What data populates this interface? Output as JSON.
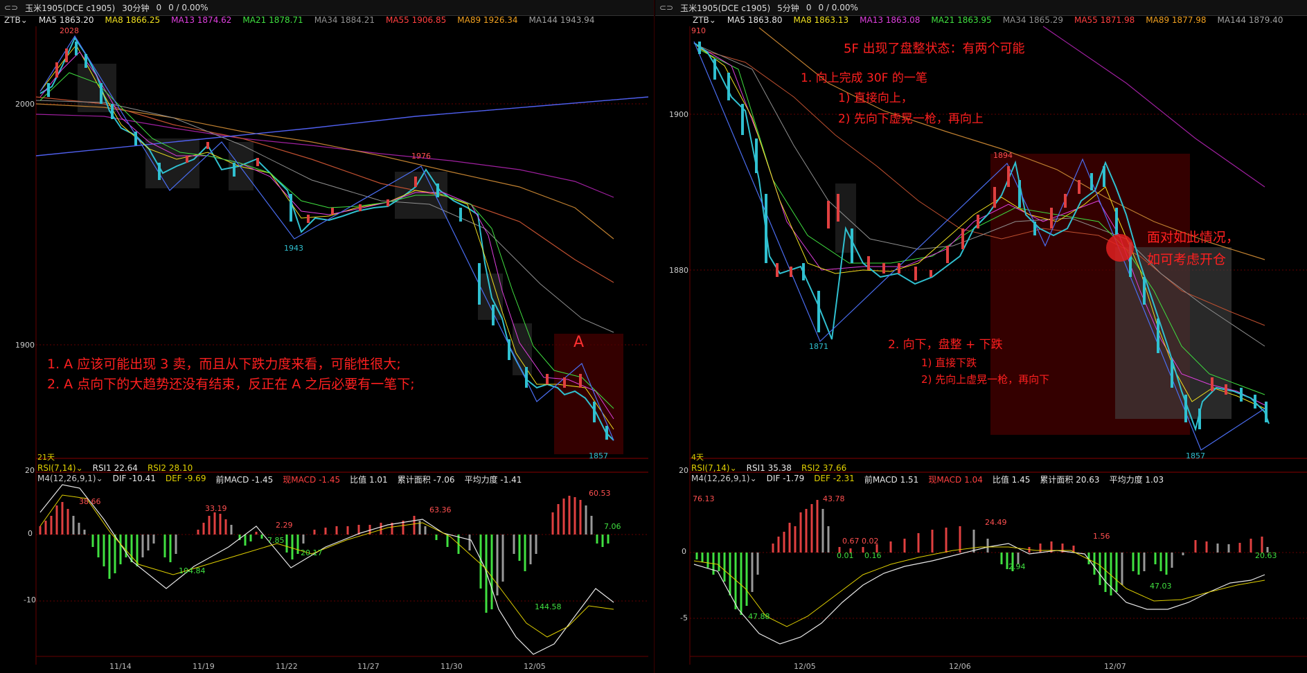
{
  "left": {
    "title": "玉米1905(DCE c1905)",
    "period": "30分钟",
    "period_arrow": "⌄",
    "change": "0",
    "change_pct": "0 / 0.00%",
    "indicator_name": "ZTB",
    "ma": [
      {
        "label": "MA5 1863.20",
        "color": "#e8e8e8"
      },
      {
        "label": "MA8 1866.25",
        "color": "#f0e020"
      },
      {
        "label": "MA13 1874.62",
        "color": "#e040e0"
      },
      {
        "label": "MA21 1878.71",
        "color": "#40e040"
      },
      {
        "label": "MA34 1884.21",
        "color": "#909090"
      },
      {
        "label": "MA55 1906.85",
        "color": "#ff4040"
      },
      {
        "label": "MA89 1926.34",
        "color": "#f0a020"
      },
      {
        "label": "MA144 1943.94",
        "color": "#a0a0a0"
      }
    ],
    "price_labels": {
      "high": "2028",
      "p1976": "1976",
      "p1943": "1943",
      "low": "1857",
      "y2000": "2000",
      "y1900": "1900"
    },
    "marker_A": "A",
    "annotations": [
      "1. A 应该可能出现 3 卖，而且从下跌力度来看，可能性很大;",
      "2. A 点向下的大趋势还没有结束，反正在 A 之后必要有一笔下;"
    ],
    "days": "21天",
    "rsi_line": {
      "rsi_label": "RSI(7,14)",
      "rsi1": "RSI1 22.64",
      "rsi2": "RSI2 28.10"
    },
    "macd_line": {
      "name": "M4(12,26,9,1)",
      "dif": "DIF -10.41",
      "dea": "DEF -9.69",
      "prev": "前MACD -1.45",
      "cur": "现MACD -1.45",
      "ratio": "比值 1.01",
      "area": "累计面积 -7.06",
      "avg": "平均力度 -1.41"
    },
    "macd_axis": {
      "top": "20",
      "zero": "0",
      "neg": "-10"
    },
    "macd_labels": [
      "38.66",
      "33.19",
      "104.84",
      "2.29",
      "7.85",
      "20.17",
      "63.36",
      "144.58",
      "60.53",
      "7.06"
    ],
    "dates": [
      "11/14",
      "11/19",
      "11/22",
      "11/27",
      "11/30",
      "12/05"
    ]
  },
  "right": {
    "title": "玉米1905(DCE c1905)",
    "period": "5分钟",
    "period_arrow": "⌄",
    "change": "0",
    "change_pct": "0 / 0.00%",
    "indicator_name": "ZTB",
    "ma": [
      {
        "label": "MA5 1863.80",
        "color": "#e8e8e8"
      },
      {
        "label": "MA8 1863.13",
        "color": "#f0e020"
      },
      {
        "label": "MA13 1863.08",
        "color": "#e040e0"
      },
      {
        "label": "MA21 1863.95",
        "color": "#40e040"
      },
      {
        "label": "MA34 1865.29",
        "color": "#909090"
      },
      {
        "label": "MA55 1871.98",
        "color": "#ff4040"
      },
      {
        "label": "MA89 1877.98",
        "color": "#f0a020"
      },
      {
        "label": "MA144 1879.40",
        "color": "#a0a0a0"
      }
    ],
    "price_labels": {
      "high": "910",
      "p1894": "1894",
      "p1871": "1871",
      "low": "1857",
      "y1900": "1900",
      "y1880": "1880"
    },
    "annotations": {
      "title": "5F 出现了盘整状态：有两个可能",
      "up_1": "1. 向上完成 30F 的一笔",
      "up_a": "1) 直接向上，",
      "up_b": "2) 先向下虚晃一枪，再向上",
      "down_2": "2. 向下，盘整 + 下跌",
      "down_a": "1) 直接下跌",
      "down_b": "2) 先向上虚晃一枪，再向下",
      "side_1": "面对如此情况，",
      "side_2": "如可考虑开仓"
    },
    "days": "4天",
    "rsi_line": {
      "rsi_label": "RSI(7,14)",
      "rsi1": "RSI1 35.38",
      "rsi2": "RSI2 37.66"
    },
    "macd_line": {
      "name": "M4(12,26,9,1)",
      "dif": "DIF -1.79",
      "dea": "DEF -2.31",
      "prev": "前MACD 1.51",
      "cur": "现MACD 1.04",
      "ratio": "比值 1.45",
      "area": "累计面积 20.63",
      "avg": "平均力度 1.03"
    },
    "macd_axis": {
      "top": "20",
      "zero": "0",
      "neg": "-5"
    },
    "macd_labels": [
      "76.13",
      "43.78",
      "47.88",
      "0.67",
      "0.02",
      "0.01",
      "0.16",
      "24.49",
      "2.94",
      "1.56",
      "47.03",
      "20.63"
    ],
    "dates": [
      "12/05",
      "12/06",
      "12/07"
    ]
  }
}
